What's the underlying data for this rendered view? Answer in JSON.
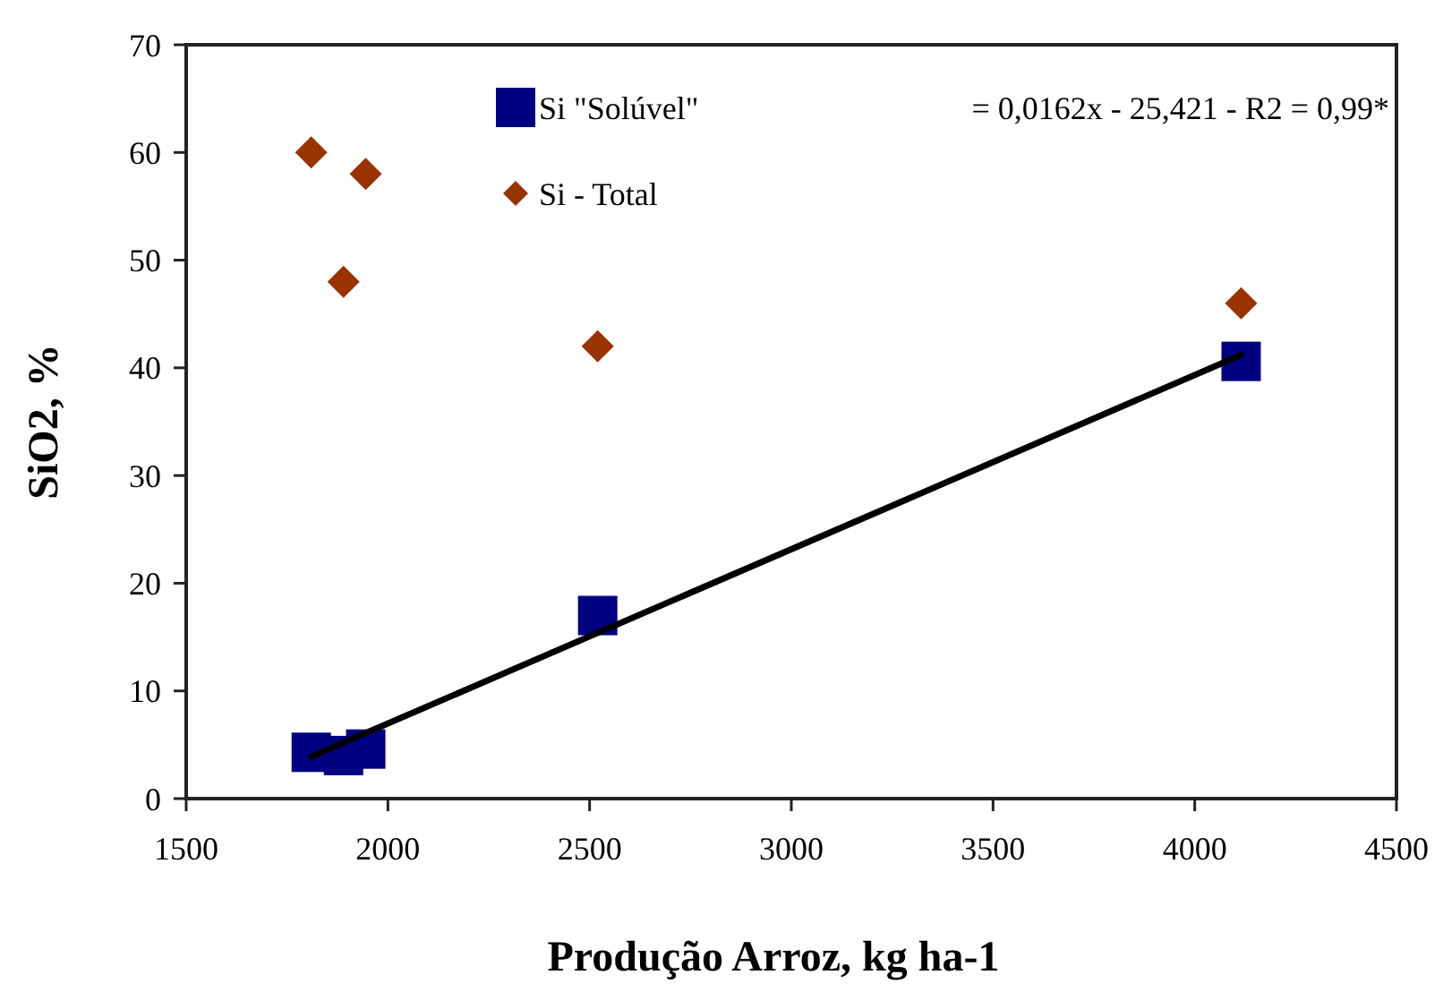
{
  "chart_data": {
    "type": "scatter",
    "xlabel": "Produção Arroz, kg ha-1",
    "ylabel": "SiO2, %",
    "xlim": [
      1500,
      4500
    ],
    "xticks": [
      1500,
      2000,
      2500,
      3000,
      3500,
      4000,
      4500
    ],
    "ylim": [
      0,
      70
    ],
    "yticks": [
      0,
      10,
      20,
      30,
      40,
      50,
      60,
      70
    ],
    "legend": "top",
    "grid": false,
    "series": [
      {
        "name": "Si \"Solúvel\"",
        "color": "#000080",
        "marker": "square",
        "x": [
          1810,
          1890,
          1945,
          2520,
          4115
        ],
        "values": [
          4.3,
          4.0,
          4.6,
          17.0,
          40.6
        ]
      },
      {
        "name": "Si - Total",
        "color": "#993300",
        "marker": "diamond",
        "x": [
          1810,
          1890,
          1945,
          2520,
          4115
        ],
        "values": [
          60,
          48,
          58,
          42,
          46
        ]
      },
      {
        "type": "line",
        "color": "#000000",
        "marker": "none",
        "x": [
          1810,
          4115
        ],
        "values": [
          3.9,
          41.2
        ]
      }
    ],
    "annotations": [
      "= 0,0162x - 25,421 - R2 = 0,99*"
    ]
  }
}
